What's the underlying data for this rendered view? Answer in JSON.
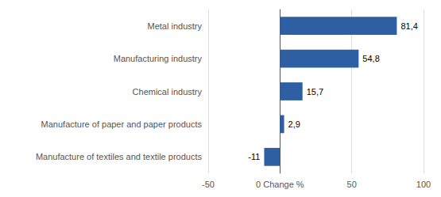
{
  "chart_data": {
    "type": "bar",
    "orientation": "horizontal",
    "categories": [
      "Manufacture of textiles and textile products",
      "Manufacture of paper and paper products",
      "Chemical industry",
      "Manufacturing industry",
      "Metal industry"
    ],
    "values": [
      -11,
      2.9,
      15.7,
      54.8,
      81.4
    ],
    "value_labels": [
      "-11",
      "2,9",
      "15,7",
      "54,8",
      "81,4"
    ],
    "data_labels": true,
    "color": "#2E5FA3",
    "xlim": [
      -50,
      100
    ],
    "xticks": [
      -50,
      {
        "value": 0,
        "label": "0 Change %"
      },
      50,
      100
    ],
    "grid": true
  }
}
